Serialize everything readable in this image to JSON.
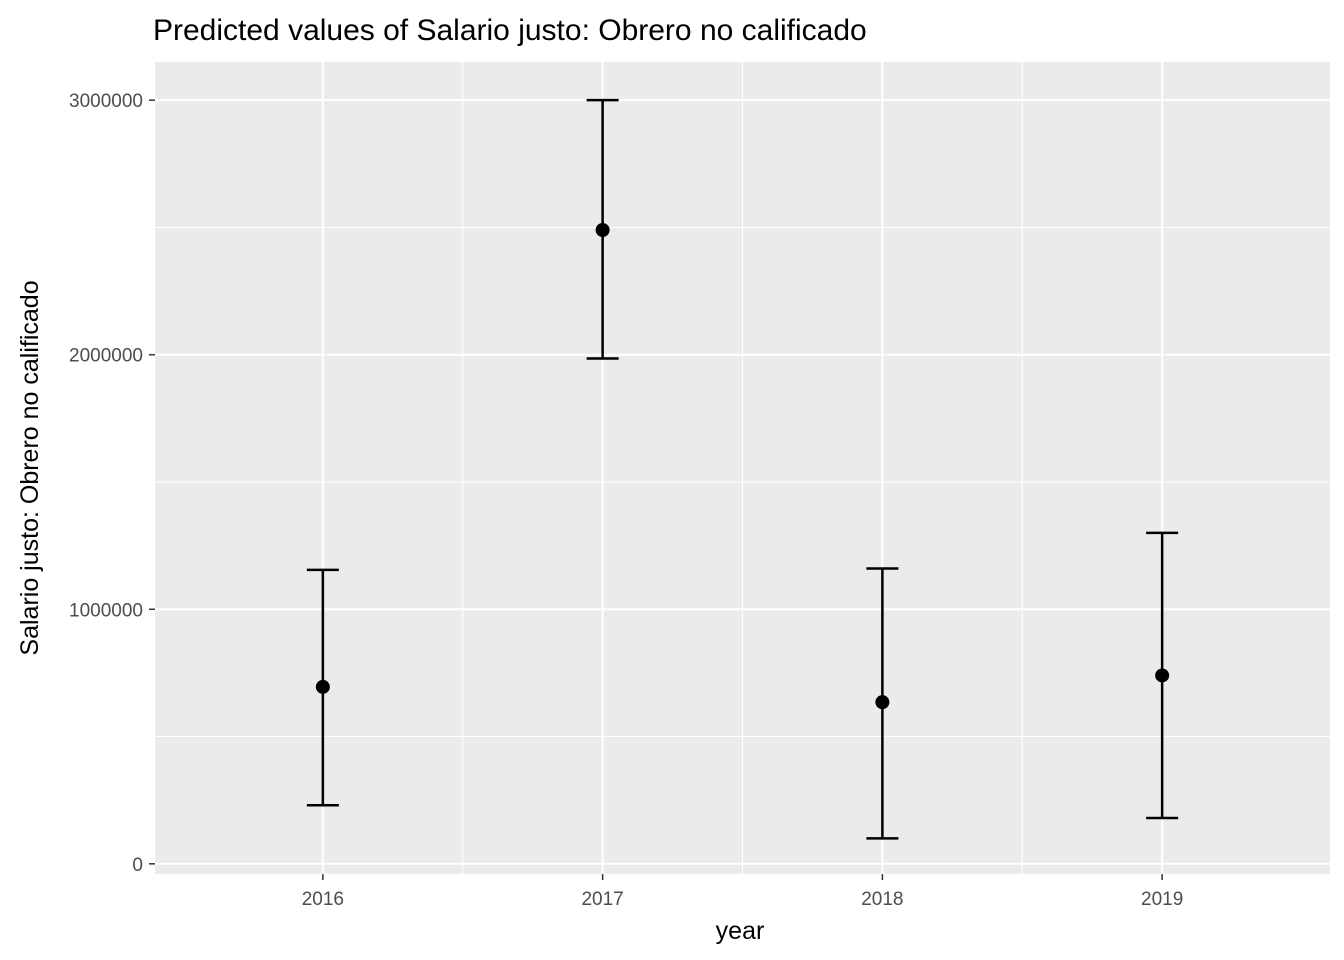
{
  "chart_data": {
    "type": "scatter",
    "title": "Predicted values of Salario justo: Obrero no calificado",
    "xlabel": "year",
    "ylabel": "Salario justo: Obrero no calificado",
    "categories": [
      "2016",
      "2017",
      "2018",
      "2019"
    ],
    "series": [
      {
        "predicted": [
          695000,
          2490000,
          635000,
          740000
        ],
        "ci_low": [
          230000,
          1985000,
          100000,
          180000
        ],
        "ci_high": [
          1155000,
          3000000,
          1160000,
          1300000
        ]
      }
    ],
    "yticks": [
      0,
      1000000,
      2000000,
      3000000
    ],
    "yticklabels": [
      "0",
      "1000000",
      "2000000",
      "3000000"
    ],
    "ylim": [
      -40000,
      3150000
    ],
    "grid": true,
    "panel_background": "#ebebeb",
    "grid_color": "#ffffff",
    "marker_color": "#000000"
  }
}
